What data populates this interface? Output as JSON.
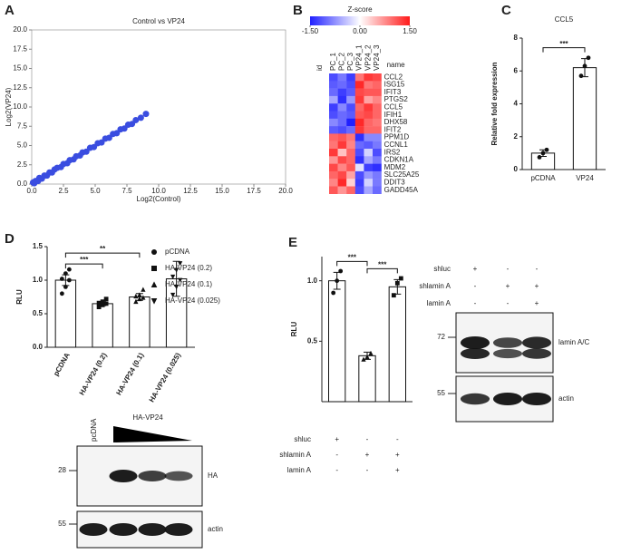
{
  "panel_labels": [
    "A",
    "B",
    "C",
    "D",
    "E"
  ],
  "chart_data": [
    {
      "type": "scatter",
      "title": "Control vs VP24",
      "x_label": "Log2(Control)",
      "y_label": "Log2(VP24)",
      "color": "#3a4de0",
      "x": [
        0.1,
        0.2,
        0.3,
        0.5,
        0.6,
        0.8,
        1.0,
        1.2,
        1.4,
        1.6,
        1.8,
        2.0,
        2.3,
        2.5,
        2.8,
        3.0,
        3.3,
        3.5,
        3.8,
        4.0,
        4.3,
        4.6,
        4.9,
        5.2,
        5.5,
        5.8,
        6.1,
        6.4,
        6.7,
        7.0,
        7.3,
        7.6,
        7.9,
        8.2,
        8.6,
        9.0
      ],
      "y": [
        0.2,
        0.1,
        0.4,
        0.4,
        0.8,
        0.7,
        1.1,
        1.1,
        1.5,
        1.5,
        1.9,
        2.1,
        2.2,
        2.6,
        2.7,
        3.1,
        3.2,
        3.6,
        3.7,
        4.1,
        4.2,
        4.7,
        4.8,
        5.3,
        5.4,
        5.9,
        6.0,
        6.5,
        6.6,
        7.1,
        7.2,
        7.7,
        7.8,
        8.3,
        8.6,
        9.1
      ],
      "xlim": [
        0,
        20
      ],
      "ylim": [
        0,
        20
      ],
      "xticks": [
        {
          "value": 0,
          "label": "0.0"
        },
        {
          "value": 2.5,
          "label": "2.5"
        },
        {
          "value": 5,
          "label": "5.0"
        },
        {
          "value": 7.5,
          "label": "7.5"
        },
        {
          "value": 10,
          "label": "10.0"
        },
        {
          "value": 12.5,
          "label": "12.5"
        },
        {
          "value": 15,
          "label": "15.0"
        },
        {
          "value": 17.5,
          "label": "17.5"
        },
        {
          "value": 20,
          "label": "20.0"
        }
      ],
      "yticks": [
        {
          "value": 0,
          "label": "0.0"
        },
        {
          "value": 2.5,
          "label": "2.5"
        },
        {
          "value": 5,
          "label": "5.0"
        },
        {
          "value": 7.5,
          "label": "7.5"
        },
        {
          "value": 10,
          "label": "10.0"
        },
        {
          "value": 12.5,
          "label": "12.5"
        },
        {
          "value": 15,
          "label": "15.0"
        },
        {
          "value": 17.5,
          "label": "17.5"
        },
        {
          "value": 20,
          "label": "20.0"
        }
      ]
    },
    {
      "type": "heatmap",
      "title": "Z-score",
      "row_header": "id",
      "name_header": "name",
      "columns": [
        "PC_1",
        "PC_2",
        "PC_3",
        "VP24_1",
        "VP24_2",
        "VP24_3"
      ],
      "rows": [
        "CCL2",
        "ISG15",
        "IFIT3",
        "PTGS2",
        "CCL5",
        "IFIH1",
        "DHX58",
        "IFIT2",
        "PPM1D",
        "CCNL1",
        "IRS2",
        "CDKN1A",
        "MDM2",
        "SLC25A25",
        "DDIT3",
        "GADD45A"
      ],
      "values": [
        [
          -1.2,
          -0.9,
          -1.3,
          0.9,
          1.3,
          1.2
        ],
        [
          -1.1,
          -1.0,
          -1.2,
          1.4,
          0.9,
          1.0
        ],
        [
          -1.0,
          -1.3,
          -1.1,
          1.2,
          1.1,
          1.1
        ],
        [
          -0.6,
          -1.4,
          -0.7,
          1.3,
          0.6,
          0.8
        ],
        [
          -1.3,
          -0.8,
          -1.2,
          1.0,
          1.3,
          1.0
        ],
        [
          -1.2,
          -1.0,
          -1.1,
          1.1,
          1.2,
          1.0
        ],
        [
          -0.8,
          -1.0,
          -1.5,
          1.4,
          1.0,
          0.9
        ],
        [
          -1.1,
          -1.2,
          -1.0,
          1.3,
          1.0,
          1.0
        ],
        [
          1.0,
          1.1,
          0.9,
          -1.4,
          -0.8,
          -0.8
        ],
        [
          0.9,
          1.3,
          0.8,
          -1.0,
          -1.1,
          -0.9
        ],
        [
          1.3,
          0.4,
          1.0,
          -1.2,
          -0.3,
          -1.2
        ],
        [
          0.7,
          1.2,
          1.0,
          -1.4,
          -0.6,
          -0.9
        ],
        [
          1.2,
          0.8,
          1.1,
          -0.2,
          -1.3,
          -1.4
        ],
        [
          1.0,
          1.2,
          0.6,
          -1.2,
          -0.7,
          -0.9
        ],
        [
          0.8,
          1.4,
          0.3,
          -1.3,
          -0.3,
          -0.9
        ],
        [
          1.1,
          0.7,
          1.0,
          -1.2,
          -0.6,
          -1.0
        ]
      ],
      "colormap": [
        "#2020ff",
        "#ffffff",
        "#ff1a1a"
      ],
      "zlim": [
        -1.5,
        1.5
      ],
      "colorbar_ticks": [
        {
          "value": -1.5,
          "label": "-1.50"
        },
        {
          "value": 0,
          "label": "0.00"
        },
        {
          "value": 1.5,
          "label": "1.50"
        }
      ]
    },
    {
      "type": "bar",
      "title": "CCL5",
      "y_label": "Relative fold expression",
      "color": "#ffffff",
      "categories": [
        "pCDNA",
        "VP24"
      ],
      "values": [
        1.0,
        6.2
      ],
      "errors": [
        0.2,
        0.55
      ],
      "points": [
        [
          0.75,
          1.0,
          1.2
        ],
        [
          5.7,
          6.3,
          6.8
        ]
      ],
      "markers": [
        "circle",
        "circle"
      ],
      "ylim": [
        0,
        8
      ],
      "yticks": [
        0,
        2,
        4,
        6,
        8
      ],
      "significance": [
        {
          "from": 0,
          "to": 1,
          "label": "***"
        }
      ]
    },
    {
      "type": "bar",
      "y_label": "RLU",
      "color": "#ffffff",
      "categories": [
        "pCDNA",
        "HA-VP24 (0.2)",
        "HA-VP24 (0.1)",
        "HA-VP24 (0.025)"
      ],
      "values": [
        1.0,
        0.65,
        0.75,
        1.02
      ],
      "errors": [
        0.08,
        0.03,
        0.05,
        0.26
      ],
      "points": [
        [
          0.8,
          0.9,
          1.0,
          1.02,
          1.1,
          1.16
        ],
        [
          0.6,
          0.63,
          0.65,
          0.66,
          0.68,
          0.72
        ],
        [
          0.68,
          0.72,
          0.74,
          0.76,
          0.78,
          0.86
        ],
        [
          0.78,
          0.9,
          1.0,
          1.05,
          1.15,
          1.25
        ]
      ],
      "markers": [
        "circle",
        "square",
        "triangle",
        "triangle-down"
      ],
      "legend": true,
      "ylim": [
        0,
        1.5
      ],
      "yticks": [
        {
          "value": 0,
          "label": "0.0"
        },
        {
          "value": 0.5,
          "label": "0.5"
        },
        {
          "value": 1,
          "label": "1.0"
        },
        {
          "value": 1.5,
          "label": "1.5"
        }
      ],
      "significance": [
        {
          "from": 0,
          "to": 1,
          "label": "***"
        },
        {
          "from": 0,
          "to": 2,
          "label": "**"
        }
      ]
    },
    {
      "type": "bar",
      "y_label": "RLU",
      "color": "#ffffff",
      "categories": null,
      "values": [
        1.0,
        0.38,
        0.95
      ],
      "errors": [
        0.07,
        0.03,
        0.06
      ],
      "points": [
        [
          0.9,
          1.0,
          1.08
        ],
        [
          0.35,
          0.37,
          0.4
        ],
        [
          0.88,
          0.98,
          1.02
        ]
      ],
      "markers": [
        "circle",
        "triangle",
        "square"
      ],
      "ylim": [
        0,
        1.2
      ],
      "yticks": [
        {
          "value": 0.5,
          "label": "0.5"
        },
        {
          "value": 1,
          "label": "1.0"
        }
      ],
      "significance": [
        {
          "from": 0,
          "to": 1,
          "label": "***"
        },
        {
          "from": 1,
          "to": 2,
          "label": "***"
        }
      ],
      "conditions": [
        {
          "name": "shluc",
          "marks": [
            "+",
            "-",
            "-"
          ]
        },
        {
          "name": "shlamin A",
          "marks": [
            "-",
            "+",
            "+"
          ]
        },
        {
          "name": "lamin A",
          "marks": [
            "-",
            "-",
            "+"
          ]
        }
      ]
    }
  ],
  "blot_d": {
    "lane_label": "pcDNA",
    "group_label": "HA-VP24",
    "bands": [
      {
        "label": "HA",
        "marker": 28
      },
      {
        "label": "actin",
        "marker": 55
      }
    ]
  },
  "blot_e": {
    "bands": [
      {
        "label": "lamin A/C",
        "marker": 72
      },
      {
        "label": "actin",
        "marker": 55
      }
    ]
  }
}
